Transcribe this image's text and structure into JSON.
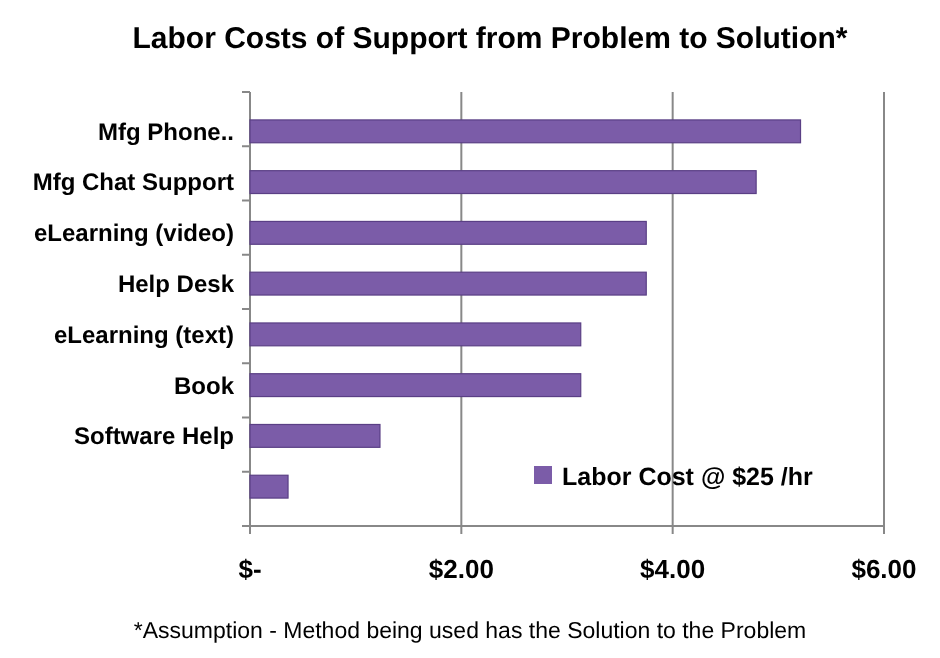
{
  "chart_data": {
    "type": "bar",
    "orientation": "horizontal",
    "title": "Labor Costs of Support from Problem to Solution*",
    "categories": [
      "Mfg Phone..",
      "Mfg Chat Support",
      "eLearning (video)",
      "Help Desk",
      "eLearning (text)",
      "Book",
      "Software Help",
      null
    ],
    "series": [
      {
        "name": "Labor Cost @ $25 /hr",
        "color": "#7b5ca8",
        "values": [
          5.21,
          4.79,
          3.75,
          3.75,
          3.13,
          3.13,
          1.23,
          0.36
        ]
      }
    ],
    "xlim": [
      0,
      6
    ],
    "xticks": [
      {
        "value": 0,
        "label": "$-"
      },
      {
        "value": 2,
        "label": "$2.00"
      },
      {
        "value": 4,
        "label": "$4.00"
      },
      {
        "value": 6,
        "label": "$6.00"
      }
    ],
    "grid": "x",
    "legend": "bottom right",
    "annotations": [
      "*Assumption - Method being used has the Solution to the Problem"
    ]
  }
}
